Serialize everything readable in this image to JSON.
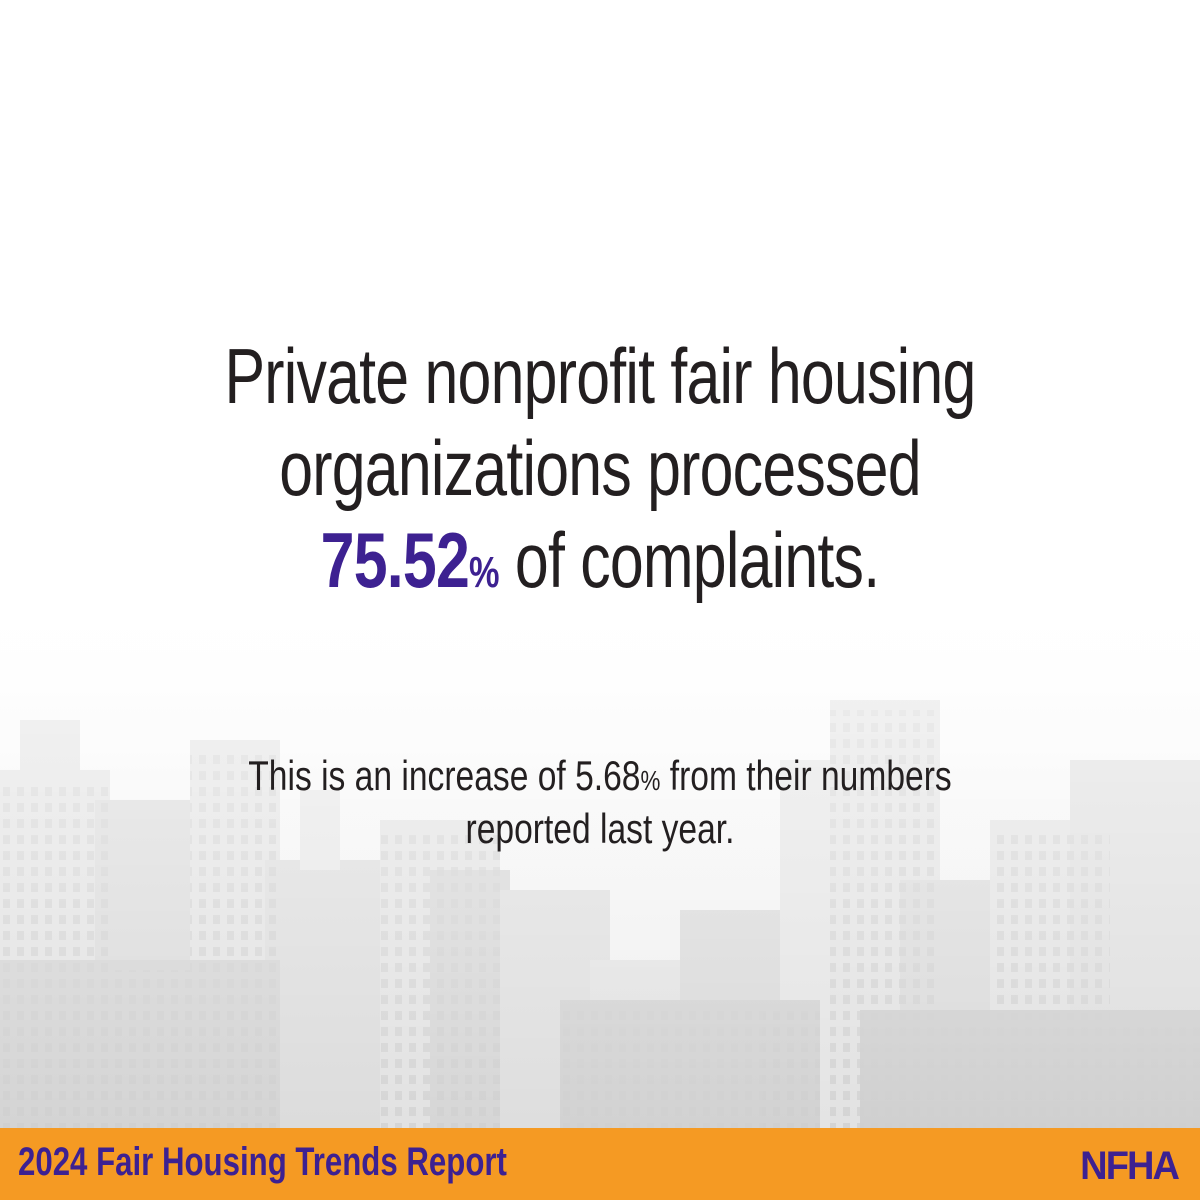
{
  "headline": {
    "line1": "Private nonprofit fair housing",
    "line2": "organizations processed",
    "stat_value": "75.52",
    "stat_unit": "%",
    "line3_rest": " of complaints."
  },
  "subtext": {
    "line1_before": "This is an increase of 5.68",
    "line1_unit": "%",
    "line1_after": " from their numbers",
    "line2": "reported last year."
  },
  "footer": {
    "title": "2024 Fair Housing Trends Report",
    "logo_text": "NFHA"
  },
  "colors": {
    "accent_purple": "#3d2191",
    "footer_orange": "#f59a23",
    "text_dark": "#231f20"
  }
}
